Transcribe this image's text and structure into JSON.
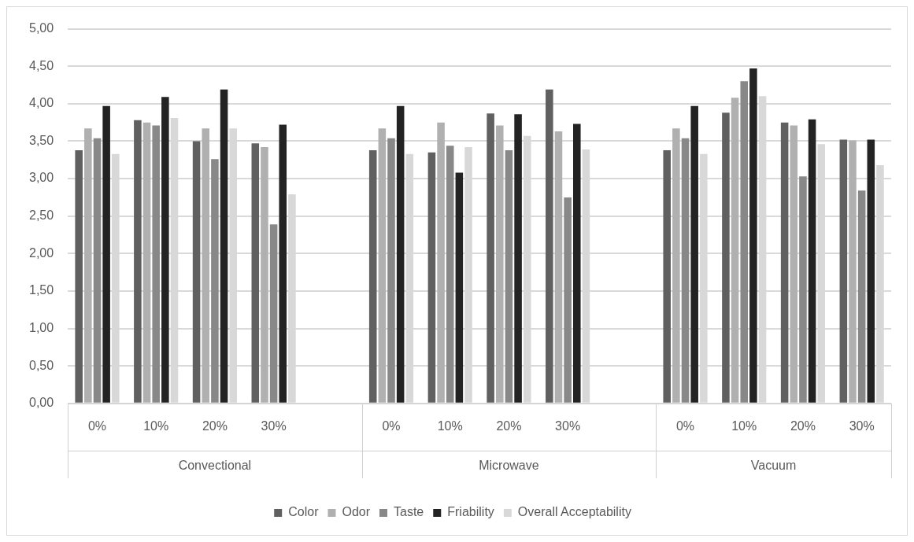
{
  "chart_data": {
    "type": "bar",
    "categories": [
      "0%",
      "10%",
      "20%",
      "30%",
      null,
      "0%",
      "10%",
      "20%",
      "30%",
      null,
      "0%",
      "10%",
      "20%",
      "30%"
    ],
    "series": [
      {
        "name": "Color",
        "color": "#606060",
        "values": [
          3.38,
          3.78,
          3.5,
          3.47,
          null,
          3.38,
          3.35,
          3.87,
          4.19,
          null,
          3.38,
          3.88,
          3.75,
          3.52
        ]
      },
      {
        "name": "Odor",
        "color": "#b0b0b0",
        "values": [
          3.67,
          3.75,
          3.67,
          3.42,
          null,
          3.67,
          3.75,
          3.71,
          3.63,
          null,
          3.67,
          4.08,
          3.71,
          3.51
        ]
      },
      {
        "name": "Taste",
        "color": "#888888",
        "values": [
          3.54,
          3.71,
          3.26,
          2.39,
          null,
          3.54,
          3.44,
          3.38,
          2.75,
          null,
          3.54,
          4.3,
          3.03,
          2.84
        ]
      },
      {
        "name": "Friability",
        "color": "#232323",
        "values": [
          3.97,
          4.09,
          4.19,
          3.72,
          null,
          3.97,
          3.08,
          3.86,
          3.73,
          null,
          3.97,
          4.47,
          3.79,
          3.52
        ]
      },
      {
        "name": "Overall Acceptability",
        "color": "#d8d8d8",
        "values": [
          3.33,
          3.81,
          3.67,
          2.79,
          null,
          3.33,
          3.42,
          3.57,
          3.39,
          null,
          3.33,
          4.1,
          3.46,
          3.18
        ]
      }
    ],
    "annotations": [
      "Convectional",
      "Microwave",
      "Vacuum"
    ],
    "ylim": [
      0,
      5
    ],
    "yticks": [
      {
        "value": 0,
        "label": "0,00"
      },
      {
        "value": 0.5,
        "label": "0,50"
      },
      {
        "value": 1,
        "label": "1,00"
      },
      {
        "value": 1.5,
        "label": "1,50"
      },
      {
        "value": 2,
        "label": "2,00"
      },
      {
        "value": 2.5,
        "label": "2,50"
      },
      {
        "value": 3,
        "label": "3,00"
      },
      {
        "value": 3.5,
        "label": "3,50"
      },
      {
        "value": 4,
        "label": "4,00"
      },
      {
        "value": 4.5,
        "label": "4,50"
      },
      {
        "value": 5,
        "label": "5,00"
      }
    ],
    "grid": "y",
    "legend": "bottom"
  }
}
